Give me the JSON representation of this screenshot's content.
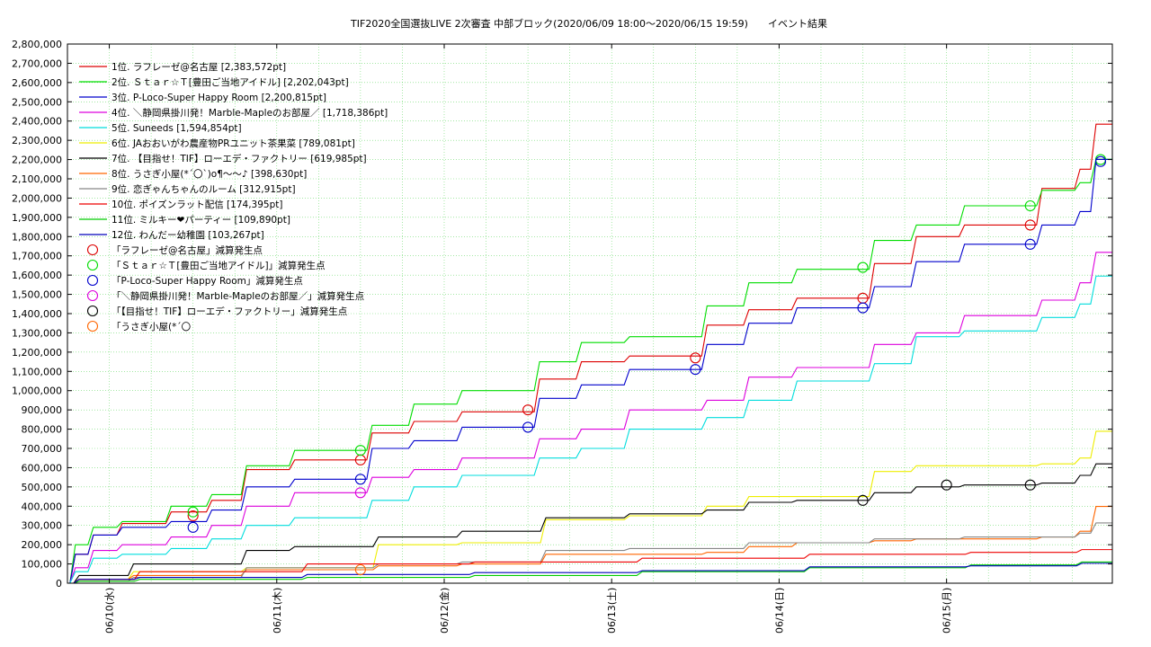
{
  "chart_data": {
    "type": "line",
    "step": true,
    "title": "TIF2020全国選抜LIVE 2次審査 中部ブロック(2020/06/09 18:00〜2020/06/15 19:59)　　イベント結果",
    "xlabel": "",
    "ylabel": "",
    "x_ticks": [
      "06/10(水)",
      "06/11(木)",
      "06/12(金)",
      "06/13(土)",
      "06/14(日)",
      "06/15(月)"
    ],
    "x_tick_days": [
      1,
      2,
      3,
      4,
      5,
      6
    ],
    "xlim": [
      0.75,
      6.99
    ],
    "ylim": [
      0,
      2800000
    ],
    "y_ticks": [
      "0",
      "100,000",
      "200,000",
      "300,000",
      "400,000",
      "500,000",
      "600,000",
      "700,000",
      "800,000",
      "900,000",
      "1,000,000",
      "1,100,000",
      "1,200,000",
      "1,300,000",
      "1,400,000",
      "1,500,000",
      "1,600,000",
      "1,700,000",
      "1,800,000",
      "1,900,000",
      "2,000,000",
      "2,100,000",
      "2,200,000",
      "2,300,000",
      "2,400,000",
      "2,500,000",
      "2,600,000",
      "2,700,000",
      "2,800,000"
    ],
    "grid": true,
    "legend_position": "top-left",
    "series": [
      {
        "name": "1位. ラフレーゼ@名古屋 [2,383,572pt]",
        "color": "#dd0000",
        "x": [
          0.75,
          0.85,
          1.0,
          1.3,
          1.55,
          1.75,
          2.0,
          2.5,
          2.75,
          3.0,
          3.5,
          3.75,
          4.0,
          4.5,
          4.75,
          5.0,
          5.5,
          5.75,
          6.0,
          6.5,
          6.75,
          6.85,
          6.92,
          6.99
        ],
        "y": [
          0,
          150000,
          250000,
          310000,
          370000,
          430000,
          590000,
          640000,
          780000,
          840000,
          890000,
          1060000,
          1150000,
          1180000,
          1340000,
          1420000,
          1480000,
          1660000,
          1800000,
          1860000,
          2050000,
          2150000,
          2383572,
          2383572
        ]
      },
      {
        "name": "2位. Ｓｔａｒ☆Ｔ[豊田ご当地アイドル] [2,202,043pt]",
        "color": "#00dd00",
        "x": [
          0.75,
          0.85,
          1.0,
          1.3,
          1.55,
          1.75,
          2.0,
          2.5,
          2.75,
          3.0,
          3.5,
          3.75,
          4.0,
          4.5,
          4.75,
          5.0,
          5.5,
          5.75,
          6.0,
          6.5,
          6.75,
          6.85,
          6.92,
          6.99
        ],
        "y": [
          0,
          200000,
          290000,
          320000,
          400000,
          460000,
          610000,
          690000,
          820000,
          930000,
          1000000,
          1150000,
          1250000,
          1280000,
          1440000,
          1560000,
          1630000,
          1780000,
          1860000,
          1960000,
          2040000,
          2080000,
          2202043,
          2202043
        ]
      },
      {
        "name": "3位. P-Loco-Super Happy Room [2,200,815pt]",
        "color": "#0000cc",
        "x": [
          0.75,
          0.85,
          1.0,
          1.3,
          1.55,
          1.75,
          2.0,
          2.5,
          2.75,
          3.0,
          3.5,
          3.75,
          4.0,
          4.5,
          4.75,
          5.0,
          5.5,
          5.75,
          6.0,
          6.5,
          6.75,
          6.85,
          6.92,
          6.99
        ],
        "y": [
          0,
          150000,
          250000,
          290000,
          320000,
          380000,
          500000,
          540000,
          700000,
          740000,
          810000,
          960000,
          1030000,
          1110000,
          1240000,
          1350000,
          1430000,
          1540000,
          1670000,
          1760000,
          1860000,
          1930000,
          2200815,
          2200815
        ]
      },
      {
        "name": "4位. ＼静岡県掛川発！Marble-Mapleのお部屋／ [1,718,386pt]",
        "color": "#dd00dd",
        "x": [
          0.75,
          0.85,
          1.0,
          1.3,
          1.55,
          1.75,
          2.0,
          2.5,
          2.75,
          3.0,
          3.5,
          3.75,
          4.0,
          4.5,
          4.75,
          5.0,
          5.5,
          5.75,
          6.0,
          6.5,
          6.75,
          6.85,
          6.92,
          6.99
        ],
        "y": [
          0,
          80000,
          170000,
          200000,
          240000,
          300000,
          400000,
          470000,
          550000,
          590000,
          650000,
          750000,
          800000,
          900000,
          950000,
          1070000,
          1120000,
          1240000,
          1300000,
          1390000,
          1470000,
          1560000,
          1718386,
          1718386
        ]
      },
      {
        "name": "5位. Suneeds [1,594,854pt]",
        "color": "#00dddd",
        "x": [
          0.75,
          0.85,
          1.0,
          1.3,
          1.55,
          1.75,
          2.0,
          2.5,
          2.75,
          3.0,
          3.5,
          3.75,
          4.0,
          4.5,
          4.75,
          5.0,
          5.5,
          5.75,
          6.0,
          6.5,
          6.75,
          6.85,
          6.92,
          6.99
        ],
        "y": [
          0,
          60000,
          130000,
          150000,
          180000,
          230000,
          300000,
          340000,
          430000,
          500000,
          560000,
          650000,
          700000,
          800000,
          860000,
          950000,
          1050000,
          1140000,
          1280000,
          1310000,
          1380000,
          1450000,
          1594854,
          1594854
        ]
      },
      {
        "name": "6位. JAおおいがわ農産物PRユニット茶果菜 [789,081pt]",
        "color": "#eeee00",
        "x": [
          0.75,
          1.0,
          1.75,
          2.0,
          2.5,
          3.0,
          3.5,
          4.0,
          4.5,
          4.75,
          5.0,
          5.5,
          5.75,
          6.0,
          6.5,
          6.75,
          6.85,
          6.92,
          6.99
        ],
        "y": [
          0,
          20000,
          60000,
          80000,
          80000,
          200000,
          210000,
          330000,
          350000,
          400000,
          450000,
          450000,
          580000,
          610000,
          610000,
          620000,
          650000,
          789081,
          789081
        ]
      },
      {
        "name": "7位. 【目指せ！TIF】ローエデ・ファクトリー [619,985pt]",
        "color": "#000000",
        "x": [
          0.75,
          1.0,
          1.75,
          2.0,
          2.5,
          3.0,
          3.5,
          4.0,
          4.5,
          4.75,
          5.0,
          5.5,
          5.75,
          6.0,
          6.5,
          6.75,
          6.85,
          6.92,
          6.99
        ],
        "y": [
          0,
          40000,
          100000,
          170000,
          190000,
          240000,
          270000,
          340000,
          360000,
          380000,
          420000,
          430000,
          470000,
          500000,
          510000,
          520000,
          560000,
          619985,
          619985
        ]
      },
      {
        "name": "8位. うさぎ小屋(*´〇`)o¶～～♪ [398,630pt]",
        "color": "#ff6600",
        "x": [
          0.75,
          1.0,
          1.75,
          2.0,
          2.5,
          3.0,
          3.5,
          4.0,
          4.5,
          4.75,
          5.0,
          5.5,
          5.75,
          6.0,
          6.5,
          6.75,
          6.85,
          6.92,
          6.99
        ],
        "y": [
          0,
          20000,
          40000,
          70000,
          70000,
          90000,
          100000,
          150000,
          150000,
          160000,
          190000,
          210000,
          220000,
          230000,
          230000,
          240000,
          270000,
          398630,
          398630
        ]
      },
      {
        "name": "9位. 恋ぎゃんちゃんのルーム [312,915pt]",
        "color": "#888888",
        "x": [
          0.75,
          1.0,
          1.75,
          2.0,
          2.5,
          3.0,
          3.5,
          4.0,
          4.5,
          4.75,
          5.0,
          5.5,
          5.75,
          6.0,
          6.5,
          6.75,
          6.85,
          6.92,
          6.99
        ],
        "y": [
          0,
          10000,
          30000,
          80000,
          80000,
          100000,
          110000,
          170000,
          180000,
          180000,
          210000,
          210000,
          230000,
          230000,
          240000,
          240000,
          260000,
          312915,
          312915
        ]
      },
      {
        "name": "10位. ポイズンラット配信 [174,395pt]",
        "color": "#ee0000",
        "x": [
          0.75,
          1.0,
          2.0,
          3.0,
          4.0,
          5.0,
          6.0,
          6.75,
          6.92,
          6.99
        ],
        "y": [
          0,
          20000,
          60000,
          100000,
          110000,
          130000,
          150000,
          160000,
          174395,
          174395
        ]
      },
      {
        "name": "11位. ミルキー❤パーティー [109,890pt]",
        "color": "#00cc00",
        "x": [
          0.75,
          1.0,
          2.0,
          3.0,
          4.0,
          5.0,
          6.0,
          6.75,
          6.92,
          6.99
        ],
        "y": [
          0,
          10000,
          20000,
          30000,
          40000,
          60000,
          80000,
          95000,
          109890,
          109890
        ]
      },
      {
        "name": "12位. わんだー幼稚園 [103,267pt]",
        "color": "#0000bb",
        "x": [
          0.75,
          1.0,
          2.0,
          3.0,
          4.0,
          5.0,
          6.0,
          6.75,
          6.92,
          6.99
        ],
        "y": [
          0,
          20000,
          30000,
          45000,
          55000,
          65000,
          85000,
          90000,
          103267,
          103267
        ]
      }
    ],
    "markers": [
      {
        "name": "「ラフレーゼ@名古屋」減算発生点",
        "color": "#dd0000",
        "points": [
          [
            1.5,
            350000
          ],
          [
            2.5,
            640000
          ],
          [
            3.5,
            900000
          ],
          [
            4.5,
            1170000
          ],
          [
            5.5,
            1480000
          ],
          [
            6.5,
            1860000
          ]
        ]
      },
      {
        "name": "「Ｓｔａｒ☆Ｔ[豊田ご当地アイドル]」減算発生点",
        "color": "#00dd00",
        "points": [
          [
            1.5,
            370000
          ],
          [
            2.5,
            690000
          ],
          [
            5.5,
            1640000
          ],
          [
            6.5,
            1960000
          ],
          [
            6.92,
            2200000
          ]
        ]
      },
      {
        "name": "「P-Loco-Super Happy Room」減算発生点",
        "color": "#0000cc",
        "points": [
          [
            1.5,
            290000
          ],
          [
            2.5,
            540000
          ],
          [
            3.5,
            810000
          ],
          [
            4.5,
            1110000
          ],
          [
            5.5,
            1430000
          ],
          [
            6.5,
            1760000
          ],
          [
            6.92,
            2190000
          ]
        ]
      },
      {
        "name": "「＼静岡県掛川発！Marble-Mapleのお部屋／」減算発生点",
        "color": "#dd00dd",
        "points": [
          [
            2.5,
            470000
          ]
        ]
      },
      {
        "name": "「【目指せ！TIF】ローエデ・ファクトリー」減算発生点",
        "color": "#000000",
        "points": [
          [
            5.5,
            430000
          ],
          [
            6.0,
            510000
          ],
          [
            6.5,
            510000
          ]
        ]
      },
      {
        "name": "「うさぎ小屋(*´〇",
        "color": "#ff6600",
        "points": [
          [
            2.5,
            70000
          ]
        ]
      }
    ]
  }
}
